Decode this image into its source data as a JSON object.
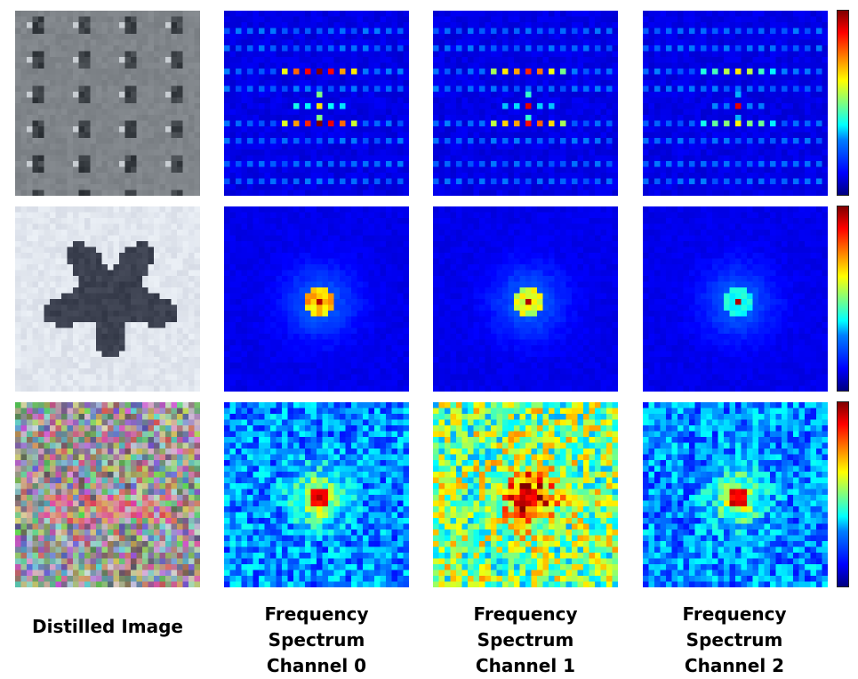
{
  "figure": {
    "rows": [
      {
        "id": "row1",
        "pattern": "grid",
        "image_style": "checker-gray"
      },
      {
        "id": "row2",
        "pattern": "center",
        "image_style": "blurred-shape"
      },
      {
        "id": "row3",
        "pattern": "noisy",
        "image_style": "noise-color"
      }
    ],
    "columns": [
      {
        "label_line1": "Distilled Image",
        "label_line2": ""
      },
      {
        "label_line1": "Frequency Spectrum",
        "label_line2": "Channel 0"
      },
      {
        "label_line1": "Frequency Spectrum",
        "label_line2": "Channel 1"
      },
      {
        "label_line1": "Frequency Spectrum",
        "label_line2": "Channel 2"
      }
    ],
    "colormap": "jet"
  }
}
